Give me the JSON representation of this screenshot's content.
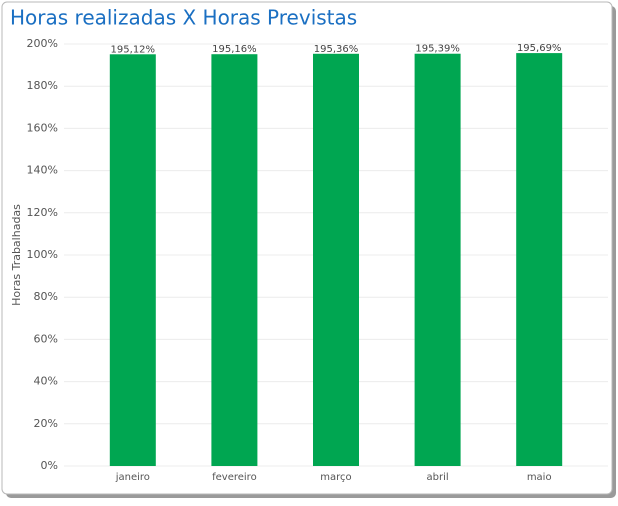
{
  "chart_data": {
    "type": "bar",
    "title": "Horas realizadas X Horas Previstas",
    "y_label": "Horas Trabalhadas",
    "categories": [
      "janeiro",
      "fevereiro",
      "março",
      "abril",
      "maio"
    ],
    "values": [
      195.12,
      195.16,
      195.36,
      195.39,
      195.69
    ],
    "value_labels": [
      "195,12%",
      "195,16%",
      "195,36%",
      "195,39%",
      "195,69%"
    ],
    "color": "#00a651",
    "ylim": [
      0,
      200
    ],
    "yticks": [
      {
        "value": 0,
        "label": "0%"
      },
      {
        "value": 20,
        "label": "20%"
      },
      {
        "value": 40,
        "label": "40%"
      },
      {
        "value": 60,
        "label": "60%"
      },
      {
        "value": 80,
        "label": "80%"
      },
      {
        "value": 100,
        "label": "100%"
      },
      {
        "value": 120,
        "label": "120%"
      },
      {
        "value": 140,
        "label": "140%"
      },
      {
        "value": 160,
        "label": "160%"
      },
      {
        "value": 180,
        "label": "180%"
      },
      {
        "value": 200,
        "label": "200%"
      }
    ],
    "grid": true
  }
}
